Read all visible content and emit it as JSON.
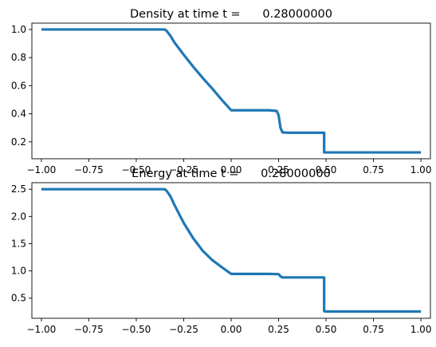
{
  "chart_data": [
    {
      "type": "line",
      "title": "Density at time t =      0.28000000",
      "xlabel": "",
      "ylabel": "",
      "xlim": [
        -1.05,
        1.05
      ],
      "ylim": [
        0.08,
        1.045
      ],
      "xticks": [
        -1.0,
        -0.75,
        -0.5,
        -0.25,
        0.0,
        0.25,
        0.5,
        0.75,
        1.0
      ],
      "xtick_labels": [
        "−1.00",
        "−0.75",
        "−0.50",
        "−0.25",
        "0.00",
        "0.25",
        "0.50",
        "0.75",
        "1.00"
      ],
      "yticks": [
        0.2,
        0.4,
        0.6,
        0.8,
        1.0
      ],
      "ytick_labels": [
        "0.2",
        "0.4",
        "0.6",
        "0.8",
        "1.0"
      ],
      "grid": false,
      "series": [
        {
          "color": "#1f77b4",
          "x": [
            -1.0,
            -0.35,
            -0.34,
            -0.32,
            -0.3,
            -0.25,
            -0.2,
            -0.15,
            -0.1,
            -0.05,
            -0.01,
            0.0,
            0.05,
            0.1,
            0.15,
            0.2,
            0.24,
            0.25,
            0.26,
            0.27,
            0.3,
            0.35,
            0.4,
            0.45,
            0.49,
            0.49,
            0.5,
            0.75,
            1.0
          ],
          "y": [
            1.0,
            1.0,
            0.99,
            0.955,
            0.91,
            0.82,
            0.735,
            0.655,
            0.58,
            0.5,
            0.44,
            0.425,
            0.425,
            0.425,
            0.425,
            0.425,
            0.42,
            0.39,
            0.3,
            0.268,
            0.265,
            0.265,
            0.265,
            0.265,
            0.265,
            0.125,
            0.125,
            0.125,
            0.125
          ]
        }
      ]
    },
    {
      "type": "line",
      "title": "Energy at time t =      0.28000000",
      "xlabel": "",
      "ylabel": "",
      "xlim": [
        -1.05,
        1.05
      ],
      "ylim": [
        0.13,
        2.62
      ],
      "xticks": [
        -1.0,
        -0.75,
        -0.5,
        -0.25,
        0.0,
        0.25,
        0.5,
        0.75,
        1.0
      ],
      "xtick_labels": [
        "−1.00",
        "−0.75",
        "−0.50",
        "−0.25",
        "0.00",
        "0.25",
        "0.50",
        "0.75",
        "1.00"
      ],
      "yticks": [
        0.5,
        1.0,
        1.5,
        2.0,
        2.5
      ],
      "ytick_labels": [
        "0.5",
        "1.0",
        "1.5",
        "2.0",
        "2.5"
      ],
      "grid": false,
      "series": [
        {
          "color": "#1f77b4",
          "x": [
            -1.0,
            -0.35,
            -0.34,
            -0.32,
            -0.3,
            -0.25,
            -0.2,
            -0.15,
            -0.1,
            -0.05,
            -0.01,
            0.0,
            0.05,
            0.1,
            0.15,
            0.2,
            0.25,
            0.26,
            0.27,
            0.3,
            0.35,
            0.4,
            0.45,
            0.49,
            0.49,
            0.5,
            0.75,
            1.0
          ],
          "y": [
            2.5,
            2.5,
            2.47,
            2.37,
            2.22,
            1.88,
            1.6,
            1.37,
            1.2,
            1.07,
            0.97,
            0.945,
            0.945,
            0.945,
            0.945,
            0.945,
            0.94,
            0.9,
            0.88,
            0.88,
            0.88,
            0.88,
            0.88,
            0.88,
            0.26,
            0.255,
            0.255,
            0.255
          ]
        }
      ]
    }
  ]
}
